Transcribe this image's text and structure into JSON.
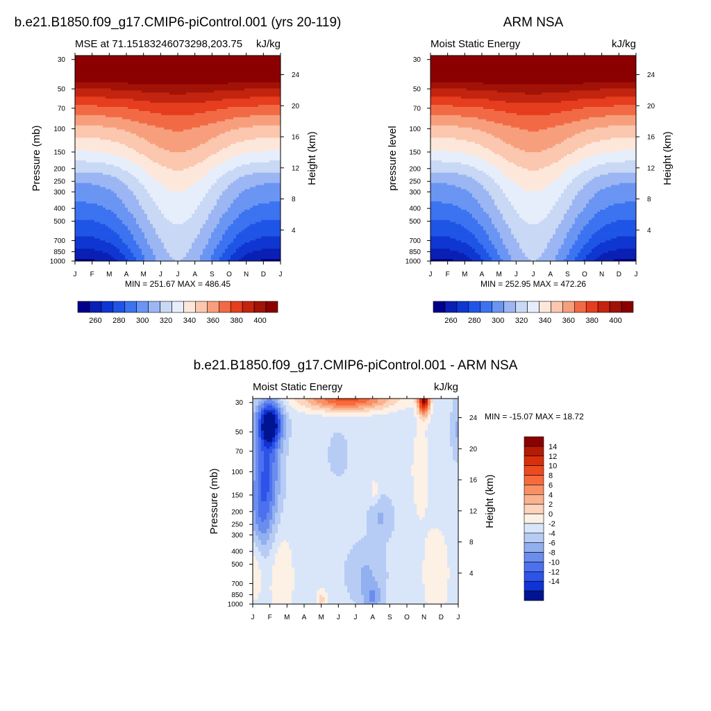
{
  "panels": {
    "model": {
      "title": "b.e21.B1850.f09_g17.CMIP6-piControl.001 (yrs 20-119)",
      "subtitle_left": "MSE at 71.15183246073298,203.75",
      "subtitle_right": "kJ/kg",
      "ylabel": "Pressure (mb)",
      "ylabel_right": "Height (km)",
      "minmax": "MIN = 251.67 MAX = 486.45"
    },
    "obs": {
      "title": "ARM NSA",
      "subtitle_left": "Moist Static Energy",
      "subtitle_right": "kJ/kg",
      "ylabel": "pressure level",
      "ylabel_right": "Height (km)",
      "minmax": "MIN = 252.95 MAX = 472.26"
    },
    "diff": {
      "title": "b.e21.B1850.f09_g17.CMIP6-piControl.001 - ARM NSA",
      "subtitle_left": "Moist Static Energy",
      "subtitle_right": "kJ/kg",
      "ylabel": "Pressure (mb)",
      "ylabel_right": "Height (km)",
      "minmax": "MIN = -15.07 MAX =  18.72"
    }
  },
  "chart_data": [
    {
      "type": "heatmap",
      "panel": "model",
      "x_tick_labels": [
        "J",
        "F",
        "M",
        "A",
        "M",
        "J",
        "J",
        "A",
        "S",
        "O",
        "N",
        "D",
        "J"
      ],
      "y_tick_labels": [
        "30",
        "50",
        "70",
        "100",
        "150",
        "200",
        "250",
        "300",
        "400",
        "500",
        "700",
        "850",
        "1000"
      ],
      "y_right_tick_labels": [
        "24",
        "20",
        "16",
        "12",
        "8",
        "4"
      ],
      "colorbar_labels": [
        "260",
        "280",
        "300",
        "320",
        "340",
        "360",
        "380",
        "400"
      ],
      "colorbar_levels": [
        255,
        265,
        275,
        285,
        295,
        305,
        315,
        325,
        335,
        345,
        355,
        365,
        375,
        385,
        395,
        405
      ],
      "colors": [
        "#00008b",
        "#0a1fb4",
        "#0f36d0",
        "#1f55e6",
        "#3c73f0",
        "#6a95f3",
        "#9cb6f3",
        "#c8d8f5",
        "#e6eefc",
        "#fde7da",
        "#fbc7ae",
        "#f79f7d",
        "#f26a45",
        "#e53d1e",
        "#c3240f",
        "#a11207",
        "#8b0000"
      ],
      "ylim": [
        1000,
        30
      ],
      "profile_jan": [
        [
          1000,
          253
        ],
        [
          850,
          262
        ],
        [
          700,
          272
        ],
        [
          500,
          284
        ],
        [
          400,
          292
        ],
        [
          300,
          300
        ],
        [
          250,
          306
        ],
        [
          200,
          318
        ],
        [
          150,
          334
        ],
        [
          100,
          352
        ],
        [
          70,
          372
        ],
        [
          50,
          395
        ],
        [
          30,
          440
        ]
      ],
      "profile_jul": [
        [
          1000,
          315
        ],
        [
          850,
          317
        ],
        [
          700,
          320
        ],
        [
          500,
          326
        ],
        [
          400,
          330
        ],
        [
          300,
          335
        ],
        [
          250,
          340
        ],
        [
          200,
          346
        ],
        [
          150,
          355
        ],
        [
          100,
          366
        ],
        [
          70,
          380
        ],
        [
          50,
          400
        ],
        [
          30,
          440
        ]
      ]
    },
    {
      "type": "heatmap",
      "panel": "obs",
      "x_tick_labels": [
        "J",
        "F",
        "M",
        "A",
        "M",
        "J",
        "J",
        "A",
        "S",
        "O",
        "N",
        "D",
        "J"
      ],
      "y_tick_labels": [
        "30",
        "50",
        "70",
        "100",
        "150",
        "200",
        "250",
        "300",
        "400",
        "500",
        "700",
        "850",
        "1000"
      ],
      "y_right_tick_labels": [
        "24",
        "20",
        "16",
        "12",
        "8",
        "4"
      ],
      "colorbar_labels": [
        "260",
        "280",
        "300",
        "320",
        "340",
        "360",
        "380",
        "400"
      ],
      "colorbar_levels": [
        255,
        265,
        275,
        285,
        295,
        305,
        315,
        325,
        335,
        345,
        355,
        365,
        375,
        385,
        395,
        405
      ],
      "colors": [
        "#00008b",
        "#0a1fb4",
        "#0f36d0",
        "#1f55e6",
        "#3c73f0",
        "#6a95f3",
        "#9cb6f3",
        "#c8d8f5",
        "#e6eefc",
        "#fde7da",
        "#fbc7ae",
        "#f79f7d",
        "#f26a45",
        "#e53d1e",
        "#c3240f",
        "#a11207",
        "#8b0000"
      ],
      "ylim": [
        1000,
        30
      ],
      "profile_jan": [
        [
          1000,
          252
        ],
        [
          850,
          262
        ],
        [
          700,
          272
        ],
        [
          500,
          284
        ],
        [
          400,
          292
        ],
        [
          300,
          300
        ],
        [
          250,
          306
        ],
        [
          200,
          318
        ],
        [
          150,
          334
        ],
        [
          100,
          352
        ],
        [
          70,
          372
        ],
        [
          50,
          395
        ],
        [
          30,
          440
        ]
      ],
      "profile_jul": [
        [
          1000,
          315
        ],
        [
          850,
          317
        ],
        [
          700,
          320
        ],
        [
          500,
          326
        ],
        [
          400,
          330
        ],
        [
          300,
          335
        ],
        [
          250,
          340
        ],
        [
          200,
          346
        ],
        [
          150,
          355
        ],
        [
          100,
          366
        ],
        [
          70,
          380
        ],
        [
          50,
          400
        ],
        [
          30,
          440
        ]
      ]
    },
    {
      "type": "heatmap",
      "panel": "diff",
      "x_tick_labels": [
        "J",
        "F",
        "M",
        "A",
        "M",
        "J",
        "J",
        "A",
        "S",
        "O",
        "N",
        "D",
        "J"
      ],
      "y_tick_labels": [
        "30",
        "50",
        "70",
        "100",
        "150",
        "200",
        "250",
        "300",
        "400",
        "500",
        "700",
        "850",
        "1000"
      ],
      "y_right_tick_labels": [
        "24",
        "20",
        "16",
        "12",
        "8",
        "4"
      ],
      "colorbar_labels": [
        "14",
        "12",
        "10",
        "8",
        "6",
        "4",
        "2",
        "0",
        "-2",
        "-4",
        "-6",
        "-8",
        "-10",
        "-12",
        "-14"
      ],
      "colors_top_to_bottom": [
        "#8b0000",
        "#b51a05",
        "#d9300c",
        "#ee4a1f",
        "#f76a3c",
        "#f99064",
        "#fab38f",
        "#fcd5bc",
        "#fdf0e5",
        "#d9e6fa",
        "#b7ccf4",
        "#92aff0",
        "#6b8ded",
        "#4d71ee",
        "#2d53e8",
        "#0f33d4",
        "#00148f"
      ]
    }
  ]
}
